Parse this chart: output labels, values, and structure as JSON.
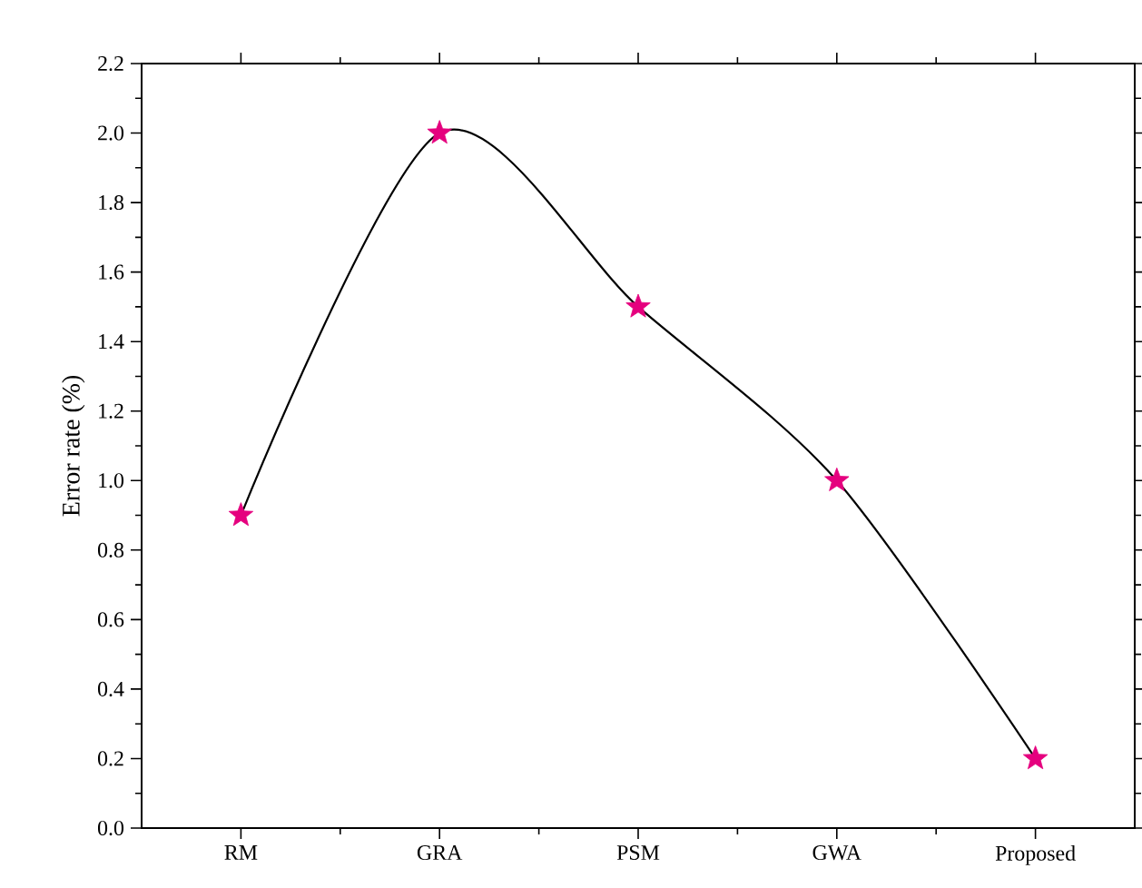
{
  "chart_data": {
    "type": "line",
    "ylabel": "Error rate (%)",
    "categories": [
      "RM",
      "GRA",
      "PSM",
      "GWA",
      "Proposed"
    ],
    "series": [
      {
        "color": "#000000",
        "marker": "none",
        "values": [
          0.9,
          2.0,
          1.5,
          1.0,
          0.2
        ]
      },
      {
        "type": "scatter",
        "color": "#e5007e",
        "values": [
          0.9,
          2.0,
          1.5,
          1.0,
          0.2
        ]
      }
    ],
    "ylim": [
      0,
      2.2
    ],
    "yticks": [
      {
        "value": 0,
        "label": "0.0"
      },
      0.2,
      0.4,
      0.6,
      0.8,
      {
        "value": 1,
        "label": "1.0"
      },
      1.2,
      1.4,
      1.6,
      1.8,
      {
        "value": 2,
        "label": "2.0"
      },
      2.2
    ],
    "marker": "star",
    "line_style": "solid"
  }
}
